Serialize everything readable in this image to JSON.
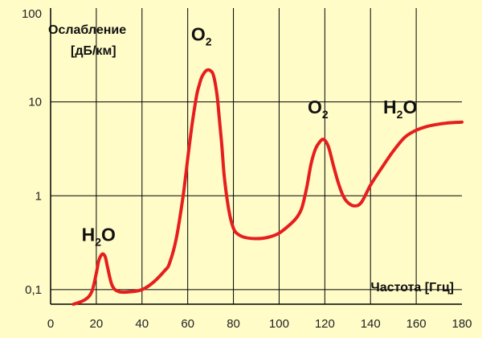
{
  "chart_data": {
    "type": "line",
    "y_scale": "log",
    "ylim": [
      0.07,
      100
    ],
    "xlim": [
      0,
      180
    ],
    "grid": true,
    "background_color": "#fffcc8",
    "line_color": "#e61e1e",
    "ylabel_line1": "Ослабление",
    "ylabel_line2": "[дБ/км]",
    "xlabel": "Частота [Ггц]",
    "x_ticks": [
      0,
      20,
      40,
      60,
      80,
      100,
      120,
      140,
      160,
      180
    ],
    "y_ticks": [
      {
        "value": 0.1,
        "label": "0,1"
      },
      {
        "value": 1,
        "label": "1"
      },
      {
        "value": 10,
        "label": "10"
      },
      {
        "value": 100,
        "label": "100"
      }
    ],
    "series": [
      {
        "x": [
          10,
          15,
          18,
          20,
          21,
          22,
          23,
          24,
          25,
          27,
          30,
          35,
          40,
          45,
          50,
          52,
          55,
          58,
          60,
          62,
          64,
          65,
          66,
          67,
          68,
          69,
          70,
          71,
          72,
          73,
          74,
          75,
          76,
          78,
          80,
          82,
          85,
          90,
          95,
          100,
          105,
          108,
          110,
          112,
          114,
          116,
          118,
          119,
          120,
          121,
          122,
          124,
          126,
          128,
          130,
          133,
          136,
          140,
          145,
          150,
          155,
          160,
          165,
          170,
          175,
          180
        ],
        "y": [
          0.07,
          0.078,
          0.095,
          0.15,
          0.2,
          0.23,
          0.24,
          0.22,
          0.17,
          0.11,
          0.095,
          0.095,
          0.1,
          0.12,
          0.16,
          0.19,
          0.35,
          1.0,
          2.5,
          6,
          12,
          15,
          18,
          20,
          21.5,
          22,
          21.5,
          20,
          16,
          11,
          6,
          3.3,
          1.6,
          0.7,
          0.45,
          0.39,
          0.36,
          0.35,
          0.36,
          0.4,
          0.5,
          0.6,
          0.75,
          1.2,
          2.2,
          3.2,
          3.8,
          4,
          3.9,
          3.6,
          3.1,
          2.0,
          1.35,
          1.0,
          0.85,
          0.78,
          0.85,
          1.3,
          2.0,
          3.0,
          4.2,
          5.0,
          5.5,
          5.8,
          6.0,
          6.1
        ]
      }
    ],
    "annotations": [
      {
        "base": "H",
        "sub": "2",
        "tail": "O",
        "x": 21,
        "y": 0.33
      },
      {
        "base": "O",
        "sub": "2",
        "tail": "",
        "x": 66,
        "y": 45
      },
      {
        "base": "O",
        "sub": "2",
        "tail": "",
        "x": 117,
        "y": 7.5
      },
      {
        "base": "H",
        "sub": "2",
        "tail": "O",
        "x": 153,
        "y": 7.5
      }
    ]
  }
}
